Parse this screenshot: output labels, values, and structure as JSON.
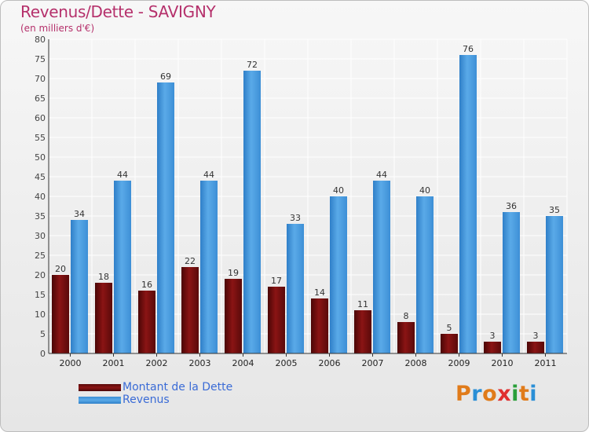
{
  "header": {
    "title": "Revenus/Dette - SAVIGNY",
    "subtitle": "(en milliers d'€)"
  },
  "chart_data": {
    "type": "bar",
    "title": "Revenus/Dette - SAVIGNY",
    "ylabel": "(en milliers d'€)",
    "xlabel": "",
    "categories": [
      "2000",
      "2001",
      "2002",
      "2003",
      "2004",
      "2005",
      "2006",
      "2007",
      "2008",
      "2009",
      "2010",
      "2011"
    ],
    "series": [
      {
        "name": "Montant de la Dette",
        "color": "#7a1010",
        "values": [
          20,
          18,
          16,
          22,
          19,
          17,
          14,
          11,
          8,
          5,
          3,
          3
        ]
      },
      {
        "name": "Revenus",
        "color": "#4f9fe0",
        "values": [
          34,
          44,
          69,
          44,
          72,
          33,
          40,
          44,
          40,
          76,
          36,
          35
        ]
      }
    ],
    "ylim": [
      0,
      80
    ],
    "yticks": [
      0,
      5,
      10,
      15,
      20,
      25,
      30,
      35,
      40,
      45,
      50,
      55,
      60,
      65,
      70,
      75,
      80
    ],
    "grid": true,
    "legend_position": "bottom-left"
  },
  "legend": {
    "items": [
      {
        "label": "Montant de la Dette",
        "color": "#7a1010"
      },
      {
        "label": "Revenus",
        "color": "#4f9fe0"
      }
    ]
  },
  "logo": {
    "letters": [
      "P",
      "r",
      "o",
      "x",
      "i",
      "t",
      "i"
    ],
    "colors": [
      "#e07b1a",
      "#2a8fd6",
      "#e07b1a",
      "#e03030",
      "#2a9f3a",
      "#e07b1a",
      "#2a8fd6"
    ]
  }
}
